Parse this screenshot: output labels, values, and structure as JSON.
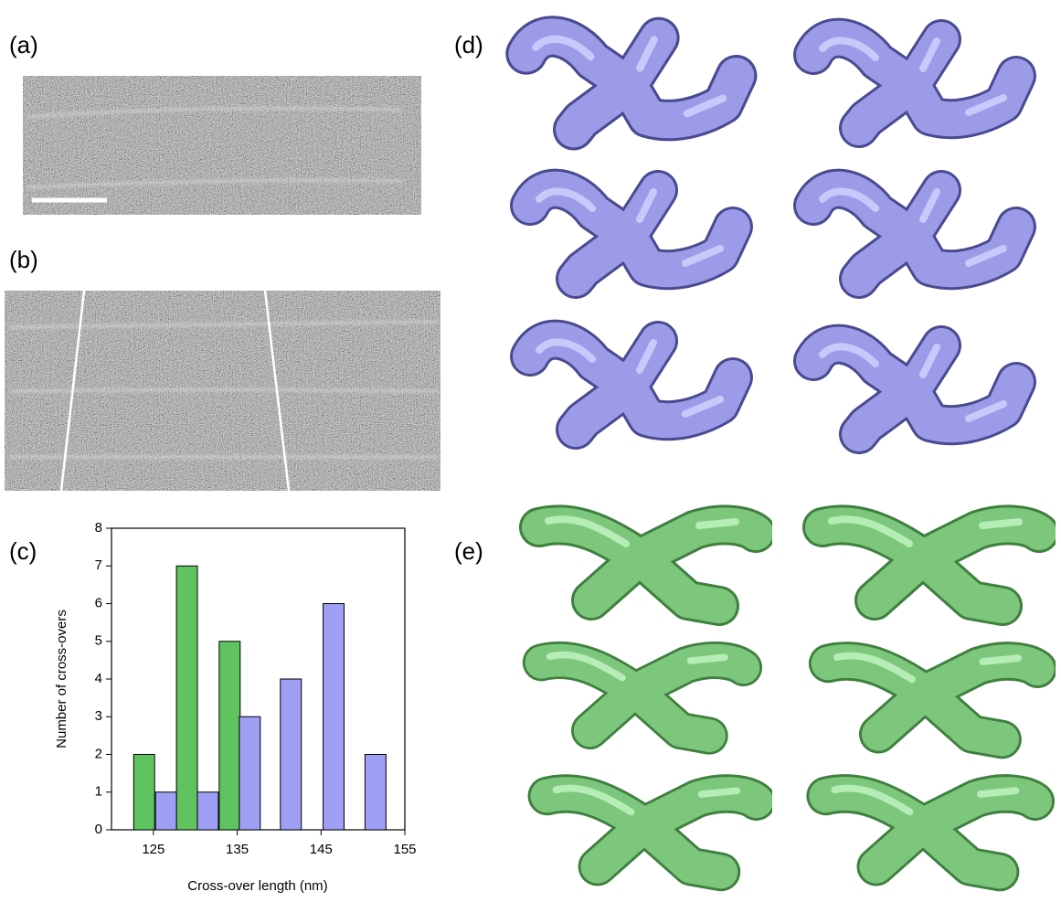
{
  "panel_labels": [
    "(a)",
    "(b)",
    "(c)",
    "(d)",
    "(e)"
  ],
  "chart_data": {
    "type": "bar",
    "x_label": "Cross-over length (nm)",
    "y_label": "Number of cross-overs",
    "xlim": [
      120,
      155
    ],
    "xticks": [
      125,
      135,
      145,
      155
    ],
    "ylim": [
      0,
      8
    ],
    "yticks": [
      0,
      1,
      2,
      3,
      4,
      5,
      6,
      7,
      8
    ],
    "bar_width": 2.5,
    "series": [
      {
        "color": "#5fc35f",
        "x": [
          123.9,
          129,
          134.1
        ],
        "values": [
          2,
          7,
          5
        ]
      },
      {
        "color": "#9f9ff5",
        "x": [
          126.5,
          131.5,
          136.5,
          141.4,
          146.5,
          151.5
        ],
        "values": [
          1,
          1,
          3,
          4,
          6,
          2
        ]
      }
    ]
  }
}
